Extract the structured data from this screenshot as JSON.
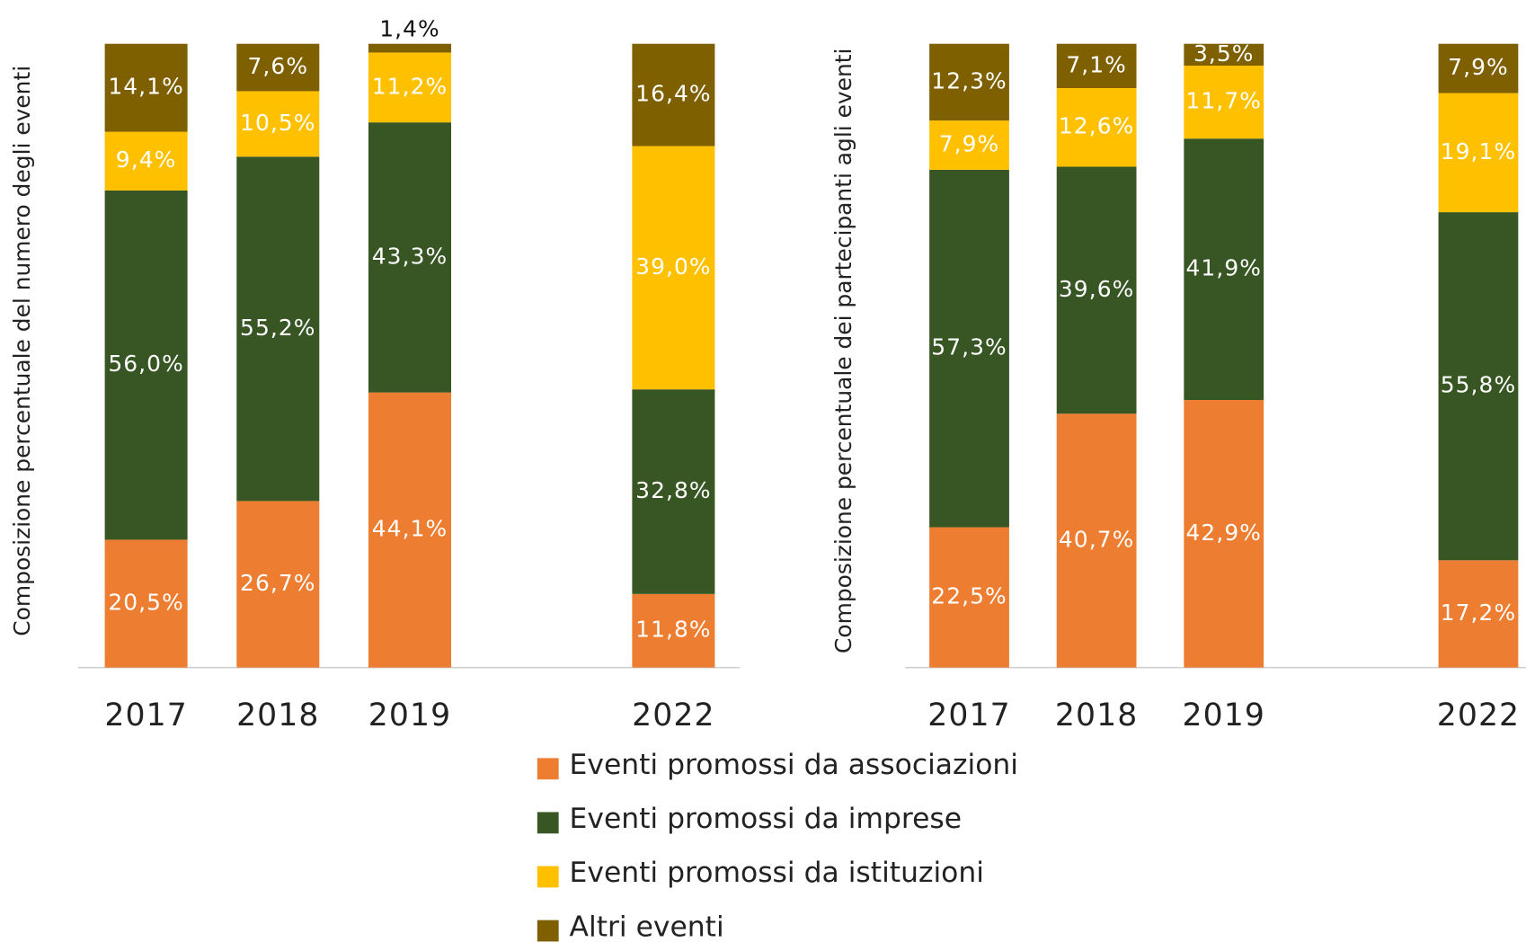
{
  "chart_data": [
    {
      "type": "bar",
      "stacked": true,
      "ylabel": "Composizione percentuale del numero degli eventi",
      "categories": [
        "2017",
        "2018",
        "2019",
        null,
        "2022"
      ],
      "ylim": [
        0,
        100
      ],
      "series": [
        {
          "name": "Eventi promossi da associazioni",
          "color": "#ed7d31",
          "values": [
            20.5,
            26.7,
            44.1,
            null,
            11.8
          ],
          "value_labels": [
            "20,5%",
            "26,7%",
            "44,1%",
            null,
            "11,8%"
          ]
        },
        {
          "name": "Eventi promossi da imprese",
          "color": "#375623",
          "values": [
            56.0,
            55.2,
            43.3,
            null,
            32.8
          ],
          "value_labels": [
            "56,0%",
            "55,2%",
            "43,3%",
            null,
            "32,8%"
          ]
        },
        {
          "name": "Eventi promossi da istituzioni",
          "color": "#ffc000",
          "values": [
            9.4,
            10.5,
            11.2,
            null,
            39.0
          ],
          "value_labels": [
            "9,4%",
            "10,5%",
            "11,2%",
            null,
            "39,0%"
          ]
        },
        {
          "name": "Altri eventi",
          "color": "#7f6000",
          "values": [
            14.1,
            7.6,
            1.4,
            null,
            16.4
          ],
          "value_labels": [
            "14,1%",
            "7,6%",
            "1,4%",
            null,
            "16,4%"
          ]
        }
      ]
    },
    {
      "type": "bar",
      "stacked": true,
      "ylabel": "Composizione percentuale dei partecipanti agli eventi",
      "categories": [
        "2017",
        "2018",
        "2019",
        null,
        "2022"
      ],
      "ylim": [
        0,
        100
      ],
      "series": [
        {
          "color": "#ed7d31",
          "values": [
            22.5,
            40.7,
            42.9,
            null,
            17.2
          ],
          "value_labels": [
            "22,5%",
            "40,7%",
            "42,9%",
            null,
            "17,2%"
          ]
        },
        {
          "color": "#375623",
          "values": [
            57.3,
            39.6,
            41.9,
            null,
            55.8
          ],
          "value_labels": [
            "57,3%",
            "39,6%",
            "41,9%",
            null,
            "55,8%"
          ]
        },
        {
          "color": "#ffc000",
          "values": [
            7.9,
            12.6,
            11.7,
            null,
            19.1
          ],
          "value_labels": [
            "7,9%",
            "12,6%",
            "11,7%",
            null,
            "19,1%"
          ]
        },
        {
          "color": "#7f6000",
          "values": [
            12.3,
            7.1,
            3.5,
            null,
            7.9
          ],
          "value_labels": [
            "12,3%",
            "7,1%",
            "3,5%",
            null,
            "7,9%"
          ]
        }
      ]
    }
  ]
}
